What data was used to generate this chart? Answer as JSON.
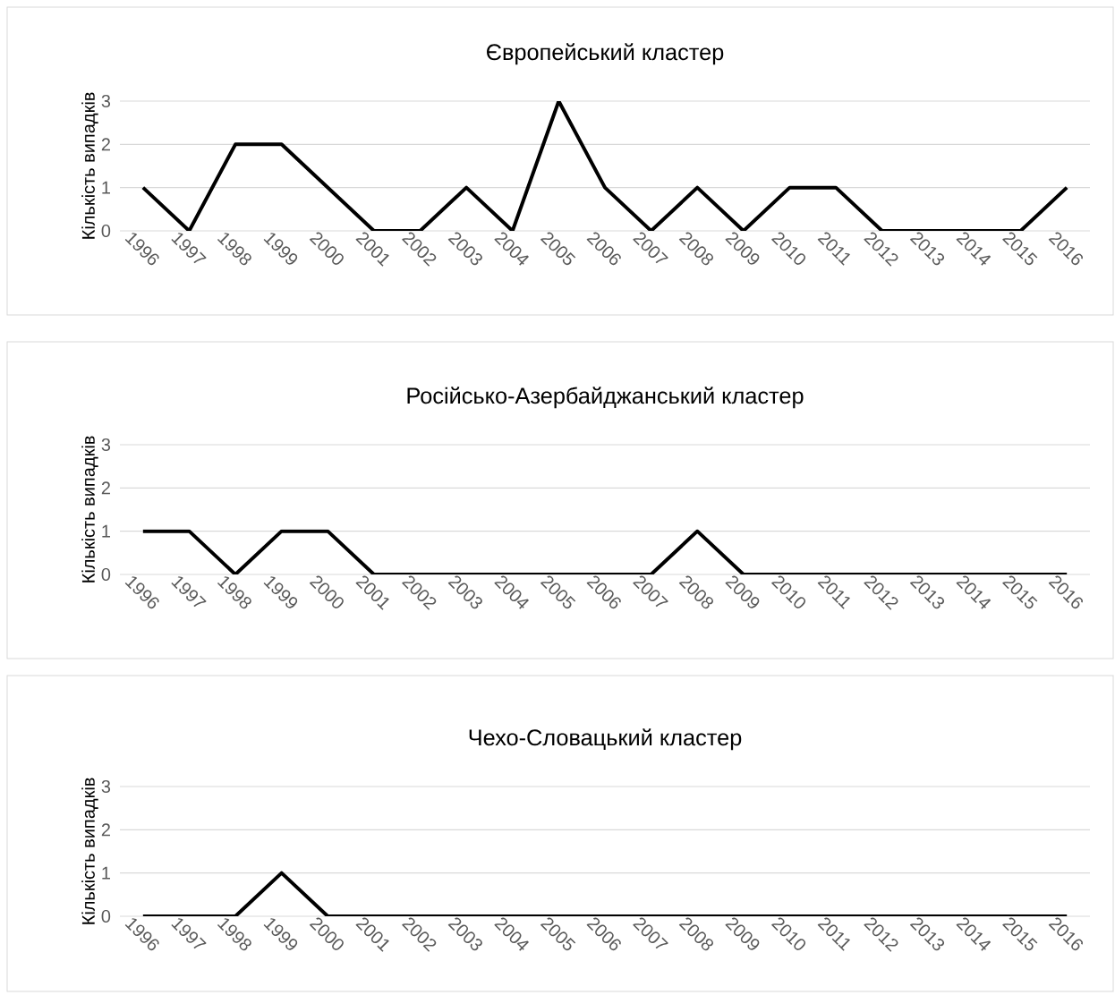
{
  "chart_data": [
    {
      "type": "line",
      "title": "Європейський кластер",
      "ylabel": "Кількість випадків",
      "categories": [
        "1996",
        "1997",
        "1998",
        "1999",
        "2000",
        "2001",
        "2002",
        "2003",
        "2004",
        "2005",
        "2006",
        "2007",
        "2008",
        "2009",
        "2010",
        "2011",
        "2012",
        "2013",
        "2014",
        "2015",
        "2016"
      ],
      "values": [
        1,
        0,
        2,
        2,
        1,
        0,
        0,
        1,
        0,
        3,
        1,
        0,
        1,
        0,
        1,
        1,
        0,
        0,
        0,
        0,
        1
      ],
      "color": "#000000",
      "ylim": [
        0,
        3
      ],
      "yticks": [
        0,
        1,
        2,
        3
      ],
      "grid": "y",
      "marker": "none",
      "line_style": "solid"
    },
    {
      "type": "line",
      "title": "Російсько-Азербайджанський кластер",
      "ylabel": "Кількість випадків",
      "categories": [
        "1996",
        "1997",
        "1998",
        "1999",
        "2000",
        "2001",
        "2002",
        "2003",
        "2004",
        "2005",
        "2006",
        "2007",
        "2008",
        "2009",
        "2010",
        "2011",
        "2012",
        "2013",
        "2014",
        "2015",
        "2016"
      ],
      "values": [
        1,
        1,
        0,
        1,
        1,
        0,
        0,
        0,
        0,
        0,
        0,
        0,
        1,
        0,
        0,
        0,
        0,
        0,
        0,
        0,
        0
      ],
      "color": "#000000",
      "ylim": [
        0,
        3
      ],
      "yticks": [
        0,
        1,
        2,
        3
      ],
      "grid": "y",
      "marker": "none",
      "line_style": "solid"
    },
    {
      "type": "line",
      "title": "Чехо-Словацький кластер",
      "ylabel": "Кількість випадків",
      "categories": [
        "1996",
        "1997",
        "1998",
        "1999",
        "2000",
        "2001",
        "2002",
        "2003",
        "2004",
        "2005",
        "2006",
        "2007",
        "2008",
        "2009",
        "2010",
        "2011",
        "2012",
        "2013",
        "2014",
        "2015",
        "2016"
      ],
      "values": [
        0,
        0,
        0,
        1,
        0,
        0,
        0,
        0,
        0,
        0,
        0,
        0,
        0,
        0,
        0,
        0,
        0,
        0,
        0,
        0,
        0
      ],
      "color": "#000000",
      "ylim": [
        0,
        3
      ],
      "yticks": [
        0,
        1,
        2,
        3
      ],
      "grid": "y",
      "marker": "none",
      "line_style": "solid"
    }
  ]
}
